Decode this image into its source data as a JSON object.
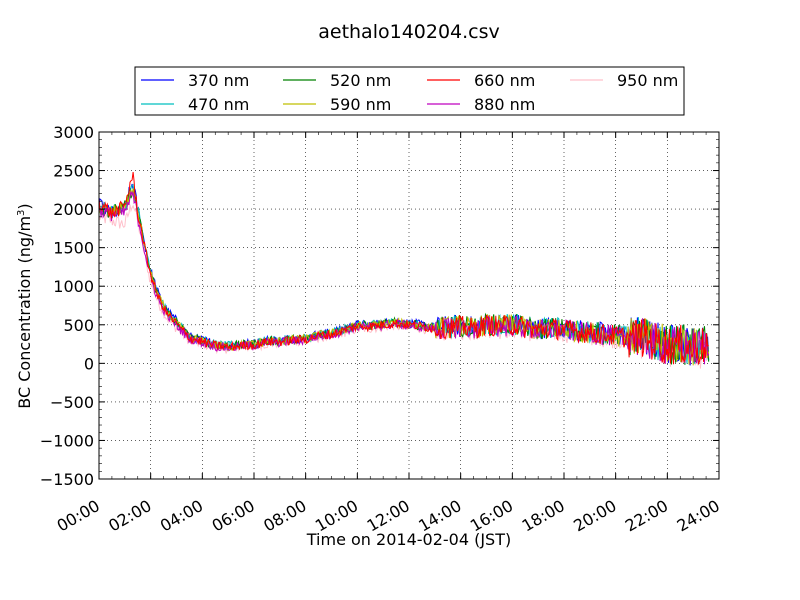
{
  "chart_data": {
    "type": "line",
    "title": "aethalo140204.csv",
    "xlabel": "Time on 2014-02-04 (JST)",
    "ylabel_main": "BC Concentration (ng/m",
    "ylabel_sup": "3",
    "ylabel_close": ")",
    "ylim": [
      -1500,
      3000
    ],
    "xlim": [
      "00:00",
      "24:00"
    ],
    "yticks": [
      3000,
      2500,
      2000,
      1500,
      1000,
      500,
      0,
      -500,
      -1000,
      -1500
    ],
    "ytick_labels": [
      "3000",
      "2500",
      "2000",
      "1500",
      "1000",
      "500",
      "0",
      "−500",
      "−1000",
      "−1500"
    ],
    "xticks": [
      "00:00",
      "02:00",
      "04:00",
      "06:00",
      "08:00",
      "10:00",
      "12:00",
      "14:00",
      "16:00",
      "18:00",
      "20:00",
      "22:00",
      "24:00"
    ],
    "grid": true,
    "legend_position": "top",
    "x_hours": [
      0,
      0.5,
      1,
      1.3,
      1.5,
      1.8,
      2,
      2.3,
      2.6,
      3,
      3.5,
      4,
      4.5,
      5,
      5.5,
      6,
      6.5,
      7,
      7.5,
      8,
      8.5,
      9,
      9.5,
      10,
      10.5,
      11,
      11.5,
      12,
      12.5,
      13,
      13.5,
      14,
      14.5,
      15,
      15.5,
      16,
      16.5,
      17,
      17.5,
      18,
      18.5,
      19,
      19.5,
      20,
      20.5,
      21,
      21.5,
      22,
      22.5,
      23,
      23.5
    ],
    "series": [
      {
        "name": "370 nm",
        "color": "#0000ff",
        "values": [
          2050,
          1950,
          2000,
          2350,
          2000,
          1500,
          1200,
          900,
          700,
          550,
          350,
          300,
          250,
          230,
          250,
          260,
          300,
          300,
          320,
          330,
          380,
          400,
          450,
          500,
          500,
          520,
          540,
          520,
          500,
          470,
          480,
          500,
          470,
          520,
          500,
          520,
          480,
          450,
          470,
          460,
          430,
          420,
          400,
          380,
          350,
          360,
          300,
          250,
          260,
          220,
          250
        ]
      },
      {
        "name": "470 nm",
        "color": "#00bfbf",
        "values": [
          2030,
          1970,
          2010,
          2300,
          1990,
          1480,
          1180,
          880,
          690,
          540,
          345,
          295,
          245,
          225,
          245,
          255,
          295,
          295,
          315,
          325,
          375,
          395,
          445,
          495,
          495,
          515,
          535,
          515,
          495,
          465,
          475,
          495,
          465,
          515,
          495,
          515,
          475,
          445,
          465,
          455,
          425,
          415,
          395,
          375,
          345,
          355,
          295,
          245,
          255,
          215,
          245
        ]
      },
      {
        "name": "520 nm",
        "color": "#008000",
        "values": [
          2020,
          1960,
          2020,
          2280,
          1980,
          1470,
          1170,
          870,
          680,
          530,
          340,
          290,
          240,
          220,
          240,
          250,
          290,
          290,
          310,
          320,
          370,
          390,
          440,
          490,
          490,
          510,
          530,
          510,
          490,
          460,
          470,
          490,
          460,
          510,
          490,
          510,
          470,
          440,
          460,
          450,
          420,
          410,
          390,
          370,
          340,
          350,
          290,
          240,
          250,
          210,
          240
        ]
      },
      {
        "name": "590 nm",
        "color": "#bfbf00",
        "values": [
          2010,
          1950,
          2030,
          2260,
          1970,
          1460,
          1160,
          860,
          670,
          520,
          335,
          285,
          235,
          215,
          235,
          245,
          285,
          285,
          305,
          315,
          365,
          385,
          435,
          485,
          485,
          505,
          525,
          505,
          485,
          455,
          465,
          485,
          455,
          505,
          485,
          505,
          465,
          435,
          455,
          445,
          415,
          405,
          385,
          365,
          335,
          345,
          285,
          235,
          245,
          205,
          235
        ]
      },
      {
        "name": "660 nm",
        "color": "#ff0000",
        "values": [
          2100,
          1940,
          2040,
          2450,
          1960,
          1450,
          1150,
          850,
          660,
          510,
          330,
          280,
          230,
          210,
          230,
          240,
          280,
          280,
          300,
          310,
          360,
          380,
          430,
          480,
          480,
          500,
          520,
          500,
          480,
          450,
          460,
          480,
          450,
          500,
          480,
          500,
          460,
          430,
          450,
          440,
          410,
          400,
          380,
          360,
          330,
          340,
          280,
          230,
          240,
          200,
          230
        ]
      },
      {
        "name": "880 nm",
        "color": "#bf00bf",
        "values": [
          1990,
          1930,
          1950,
          2200,
          1900,
          1400,
          1100,
          820,
          640,
          490,
          320,
          270,
          220,
          200,
          220,
          230,
          270,
          270,
          290,
          300,
          350,
          370,
          420,
          470,
          470,
          490,
          510,
          490,
          470,
          440,
          450,
          470,
          440,
          490,
          470,
          490,
          450,
          420,
          440,
          430,
          400,
          390,
          370,
          350,
          320,
          330,
          270,
          220,
          230,
          190,
          220
        ]
      },
      {
        "name": "950 nm",
        "color": "#ffc0cb",
        "values": [
          1900,
          1850,
          1800,
          2100,
          1850,
          1350,
          1050,
          780,
          600,
          450,
          290,
          250,
          200,
          190,
          210,
          220,
          250,
          260,
          280,
          290,
          330,
          350,
          400,
          440,
          450,
          470,
          490,
          470,
          450,
          420,
          430,
          450,
          420,
          470,
          450,
          470,
          430,
          400,
          420,
          410,
          380,
          370,
          350,
          330,
          300,
          310,
          250,
          200,
          210,
          170,
          200
        ]
      }
    ]
  }
}
